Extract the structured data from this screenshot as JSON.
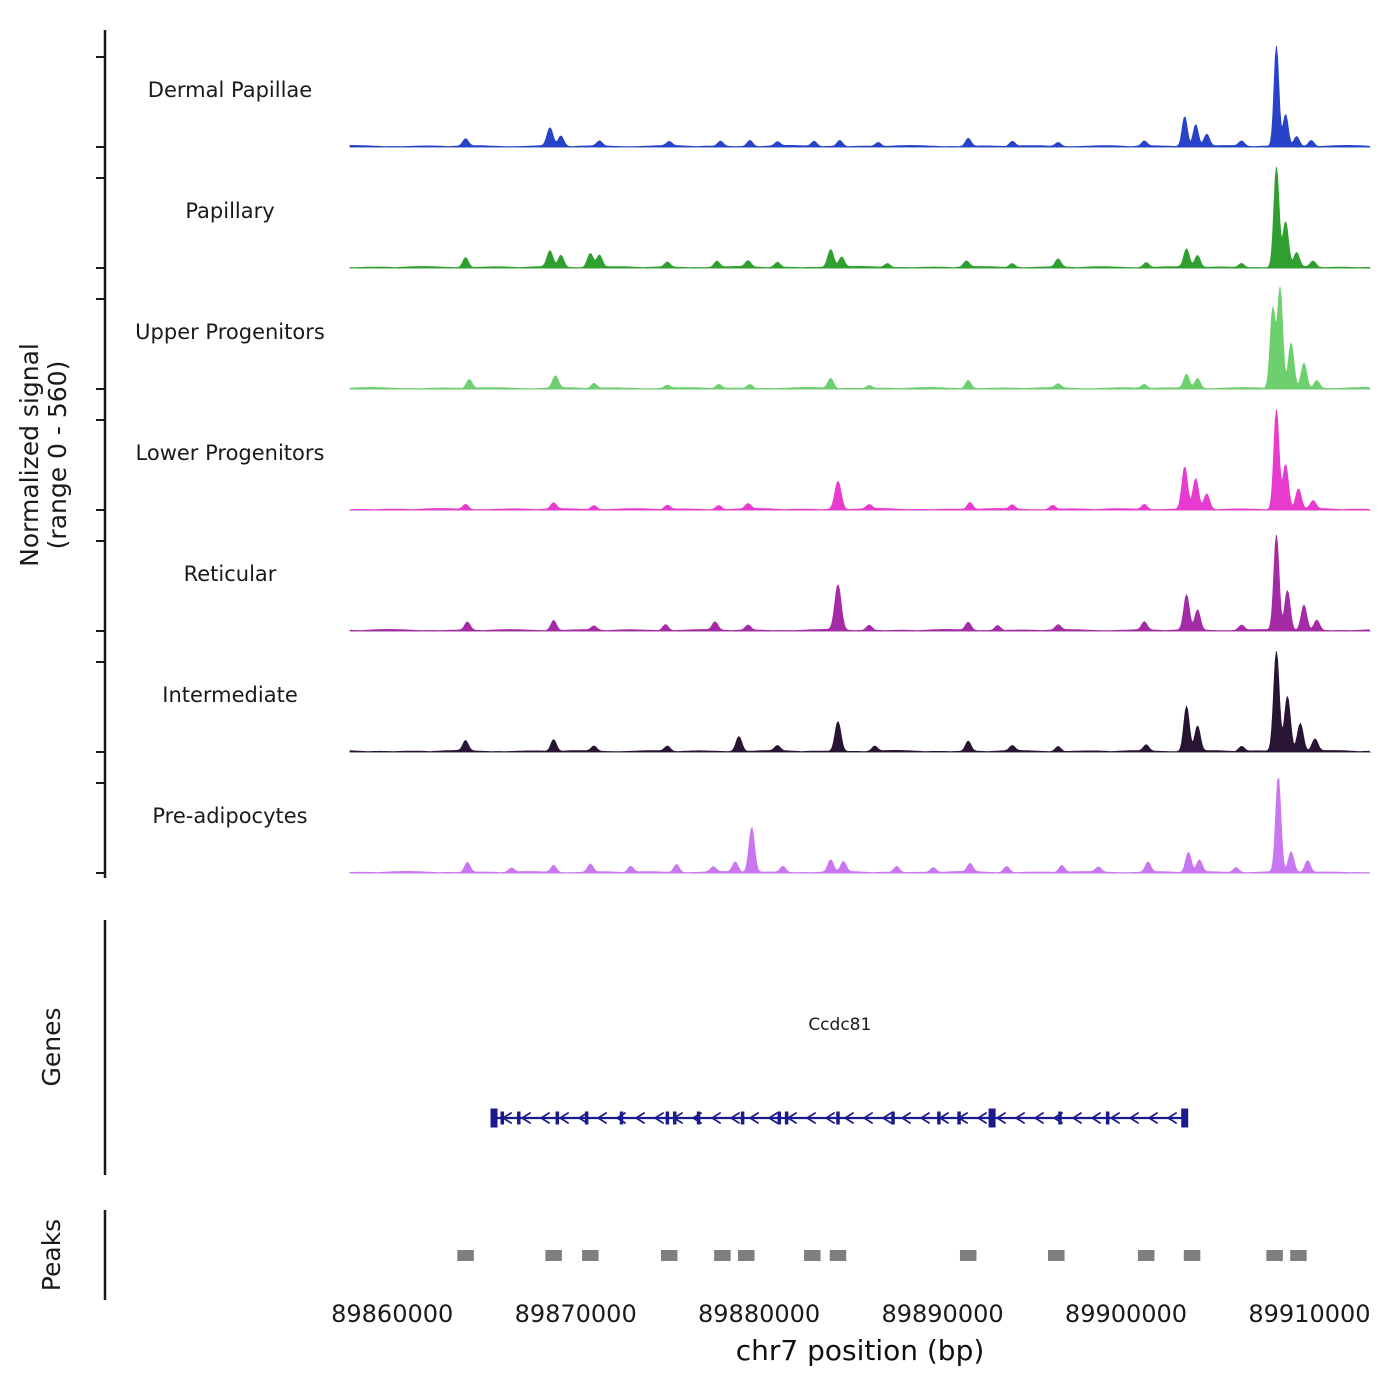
{
  "chart_data": {
    "type": "area",
    "title": "",
    "xlabel": "chr7 position (bp)",
    "ylabel_lines": [
      "Normalized signal",
      "(range 0 - 560)"
    ],
    "x_domain": [
      89857700,
      89913300
    ],
    "x_ticks": [
      89860000,
      89870000,
      89880000,
      89890000,
      89900000,
      89910000
    ],
    "signal_range": [
      0,
      560
    ],
    "tracks": [
      {
        "name": "Dermal Papillae",
        "color": "#2743c9",
        "peaks": [
          [
            89864000,
            0.07,
            150
          ],
          [
            89868600,
            0.18,
            160
          ],
          [
            89869200,
            0.1,
            150
          ],
          [
            89871300,
            0.05,
            150
          ],
          [
            89875100,
            0.04,
            150
          ],
          [
            89877900,
            0.05,
            150
          ],
          [
            89879500,
            0.06,
            150
          ],
          [
            89881000,
            0.04,
            150
          ],
          [
            89883000,
            0.05,
            150
          ],
          [
            89884400,
            0.06,
            150
          ],
          [
            89886500,
            0.04,
            150
          ],
          [
            89891400,
            0.08,
            150
          ],
          [
            89893800,
            0.05,
            150
          ],
          [
            89896300,
            0.04,
            150
          ],
          [
            89901000,
            0.05,
            150
          ],
          [
            89903200,
            0.3,
            140
          ],
          [
            89903800,
            0.22,
            140
          ],
          [
            89904400,
            0.12,
            150
          ],
          [
            89906300,
            0.05,
            150
          ],
          [
            89908200,
            1.0,
            130
          ],
          [
            89908700,
            0.32,
            140
          ],
          [
            89909300,
            0.1,
            150
          ],
          [
            89910100,
            0.06,
            150
          ]
        ]
      },
      {
        "name": "Papillary",
        "color": "#2fa02f",
        "peaks": [
          [
            89864000,
            0.1,
            150
          ],
          [
            89868600,
            0.16,
            160
          ],
          [
            89869200,
            0.12,
            150
          ],
          [
            89870800,
            0.14,
            160
          ],
          [
            89871300,
            0.12,
            150
          ],
          [
            89875000,
            0.05,
            150
          ],
          [
            89877700,
            0.06,
            150
          ],
          [
            89879400,
            0.06,
            150
          ],
          [
            89881000,
            0.05,
            150
          ],
          [
            89883900,
            0.18,
            160
          ],
          [
            89884500,
            0.1,
            150
          ],
          [
            89887000,
            0.04,
            150
          ],
          [
            89891300,
            0.06,
            150
          ],
          [
            89893800,
            0.04,
            150
          ],
          [
            89896300,
            0.08,
            150
          ],
          [
            89901100,
            0.05,
            150
          ],
          [
            89903300,
            0.18,
            150
          ],
          [
            89903900,
            0.12,
            150
          ],
          [
            89906300,
            0.04,
            150
          ],
          [
            89908200,
            1.0,
            140
          ],
          [
            89908700,
            0.45,
            150
          ],
          [
            89909300,
            0.14,
            150
          ],
          [
            89910200,
            0.06,
            150
          ]
        ]
      },
      {
        "name": "Upper Progenitors",
        "color": "#6ecf6e",
        "peaks": [
          [
            89864200,
            0.09,
            150
          ],
          [
            89868900,
            0.12,
            160
          ],
          [
            89871000,
            0.05,
            150
          ],
          [
            89875000,
            0.03,
            150
          ],
          [
            89877800,
            0.04,
            150
          ],
          [
            89879500,
            0.04,
            150
          ],
          [
            89883900,
            0.1,
            150
          ],
          [
            89886000,
            0.03,
            150
          ],
          [
            89891400,
            0.08,
            150
          ],
          [
            89896300,
            0.04,
            150
          ],
          [
            89901000,
            0.04,
            150
          ],
          [
            89903300,
            0.14,
            150
          ],
          [
            89903900,
            0.1,
            150
          ],
          [
            89908000,
            0.8,
            140
          ],
          [
            89908400,
            1.0,
            140
          ],
          [
            89909000,
            0.45,
            150
          ],
          [
            89909700,
            0.25,
            150
          ],
          [
            89910400,
            0.08,
            150
          ]
        ]
      },
      {
        "name": "Lower Progenitors",
        "color": "#e93ad0",
        "peaks": [
          [
            89864000,
            0.05,
            150
          ],
          [
            89868800,
            0.06,
            150
          ],
          [
            89871000,
            0.04,
            150
          ],
          [
            89875000,
            0.04,
            150
          ],
          [
            89877800,
            0.04,
            150
          ],
          [
            89879400,
            0.05,
            150
          ],
          [
            89884300,
            0.28,
            170
          ],
          [
            89886000,
            0.04,
            150
          ],
          [
            89891500,
            0.07,
            150
          ],
          [
            89893800,
            0.04,
            150
          ],
          [
            89896000,
            0.04,
            150
          ],
          [
            89901000,
            0.05,
            150
          ],
          [
            89903200,
            0.42,
            150
          ],
          [
            89903800,
            0.3,
            150
          ],
          [
            89904400,
            0.15,
            150
          ],
          [
            89908200,
            1.0,
            140
          ],
          [
            89908700,
            0.45,
            150
          ],
          [
            89909400,
            0.2,
            150
          ],
          [
            89910200,
            0.08,
            150
          ]
        ]
      },
      {
        "name": "Reticular",
        "color": "#a52aa5",
        "peaks": [
          [
            89864100,
            0.08,
            150
          ],
          [
            89868800,
            0.1,
            150
          ],
          [
            89871000,
            0.04,
            150
          ],
          [
            89874900,
            0.06,
            150
          ],
          [
            89877600,
            0.08,
            150
          ],
          [
            89879400,
            0.05,
            150
          ],
          [
            89884300,
            0.45,
            170
          ],
          [
            89886000,
            0.05,
            150
          ],
          [
            89891400,
            0.08,
            150
          ],
          [
            89893000,
            0.05,
            150
          ],
          [
            89896300,
            0.05,
            150
          ],
          [
            89901000,
            0.08,
            150
          ],
          [
            89903300,
            0.35,
            150
          ],
          [
            89903900,
            0.2,
            150
          ],
          [
            89906300,
            0.05,
            150
          ],
          [
            89908200,
            0.95,
            140
          ],
          [
            89908800,
            0.4,
            150
          ],
          [
            89909700,
            0.25,
            150
          ],
          [
            89910400,
            0.1,
            150
          ]
        ]
      },
      {
        "name": "Intermediate",
        "color": "#281433",
        "peaks": [
          [
            89864000,
            0.1,
            150
          ],
          [
            89868800,
            0.12,
            150
          ],
          [
            89871000,
            0.05,
            150
          ],
          [
            89875000,
            0.05,
            150
          ],
          [
            89878900,
            0.15,
            160
          ],
          [
            89881000,
            0.05,
            150
          ],
          [
            89884300,
            0.3,
            160
          ],
          [
            89886300,
            0.05,
            150
          ],
          [
            89891400,
            0.1,
            150
          ],
          [
            89893800,
            0.05,
            150
          ],
          [
            89896300,
            0.05,
            150
          ],
          [
            89901100,
            0.06,
            150
          ],
          [
            89903300,
            0.45,
            150
          ],
          [
            89903900,
            0.25,
            150
          ],
          [
            89906300,
            0.05,
            150
          ],
          [
            89908200,
            1.0,
            150
          ],
          [
            89908800,
            0.55,
            160
          ],
          [
            89909500,
            0.28,
            160
          ],
          [
            89910300,
            0.12,
            160
          ]
        ]
      },
      {
        "name": "Pre-adipocytes",
        "color": "#c977f0",
        "peaks": [
          [
            89864100,
            0.1,
            150
          ],
          [
            89866500,
            0.04,
            150
          ],
          [
            89868800,
            0.07,
            150
          ],
          [
            89870800,
            0.08,
            150
          ],
          [
            89873000,
            0.06,
            150
          ],
          [
            89875500,
            0.08,
            150
          ],
          [
            89877500,
            0.05,
            150
          ],
          [
            89878700,
            0.1,
            150
          ],
          [
            89879600,
            0.45,
            150
          ],
          [
            89881300,
            0.06,
            150
          ],
          [
            89883900,
            0.12,
            150
          ],
          [
            89884600,
            0.1,
            150
          ],
          [
            89887500,
            0.06,
            150
          ],
          [
            89889500,
            0.05,
            150
          ],
          [
            89891500,
            0.08,
            150
          ],
          [
            89893500,
            0.06,
            150
          ],
          [
            89896500,
            0.07,
            150
          ],
          [
            89898500,
            0.05,
            150
          ],
          [
            89901200,
            0.1,
            150
          ],
          [
            89903400,
            0.2,
            150
          ],
          [
            89904000,
            0.12,
            150
          ],
          [
            89906000,
            0.05,
            150
          ],
          [
            89908300,
            0.95,
            140
          ],
          [
            89909000,
            0.2,
            150
          ],
          [
            89909900,
            0.12,
            150
          ]
        ]
      }
    ],
    "gene_track": {
      "label": "Genes",
      "genes": [
        {
          "name": "Ccdc81",
          "start": 89865500,
          "end": 89903300,
          "strand": "-",
          "color": "#1b1b8f",
          "exons": [
            [
              89865550,
              1
            ],
            [
              89866000,
              0
            ],
            [
              89866900,
              0
            ],
            [
              89869000,
              0
            ],
            [
              89870600,
              0
            ],
            [
              89872500,
              0
            ],
            [
              89875000,
              0
            ],
            [
              89875400,
              0
            ],
            [
              89876700,
              0
            ],
            [
              89879100,
              0
            ],
            [
              89881100,
              0
            ],
            [
              89881500,
              0
            ],
            [
              89884300,
              0
            ],
            [
              89887300,
              0
            ],
            [
              89889800,
              0
            ],
            [
              89890900,
              0
            ],
            [
              89892700,
              1
            ],
            [
              89896400,
              0
            ],
            [
              89899000,
              0
            ],
            [
              89903200,
              1
            ]
          ]
        }
      ]
    },
    "peak_track": {
      "label": "Peaks",
      "color": "#7f7f7f",
      "width_bp": 900,
      "positions": [
        89864000,
        89868800,
        89870800,
        89875100,
        89878000,
        89879300,
        89882900,
        89884300,
        89891400,
        89896200,
        89901100,
        89903600,
        89908100,
        89909400
      ]
    }
  }
}
